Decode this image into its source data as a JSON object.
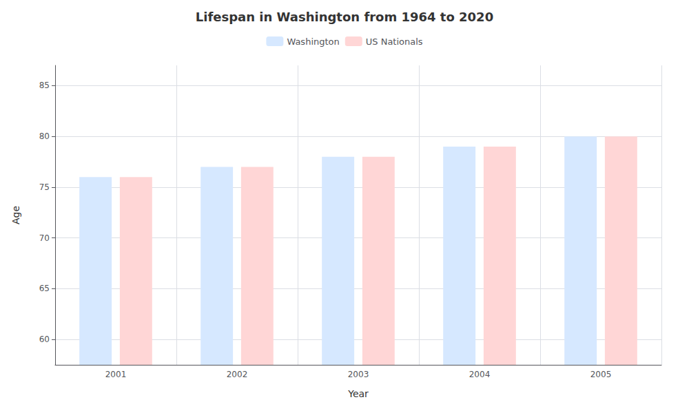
{
  "chart_data": {
    "type": "bar",
    "title": "Lifespan in Washington from 1964 to 2020",
    "xlabel": "Year",
    "ylabel": "Age",
    "categories": [
      "2001",
      "2002",
      "2003",
      "2004",
      "2005"
    ],
    "series": [
      {
        "name": "Washington",
        "color": "#d6e8ff",
        "values": [
          76.0,
          77.0,
          78.0,
          79.0,
          80.0
        ]
      },
      {
        "name": "US Nationals",
        "color": "#ffd6d6",
        "values": [
          76.0,
          77.0,
          78.0,
          79.0,
          80.0
        ]
      }
    ],
    "ylim": [
      57.5,
      87
    ],
    "yticks": [
      60,
      65,
      70,
      75,
      80,
      85
    ],
    "grid": true,
    "legend": "top"
  }
}
